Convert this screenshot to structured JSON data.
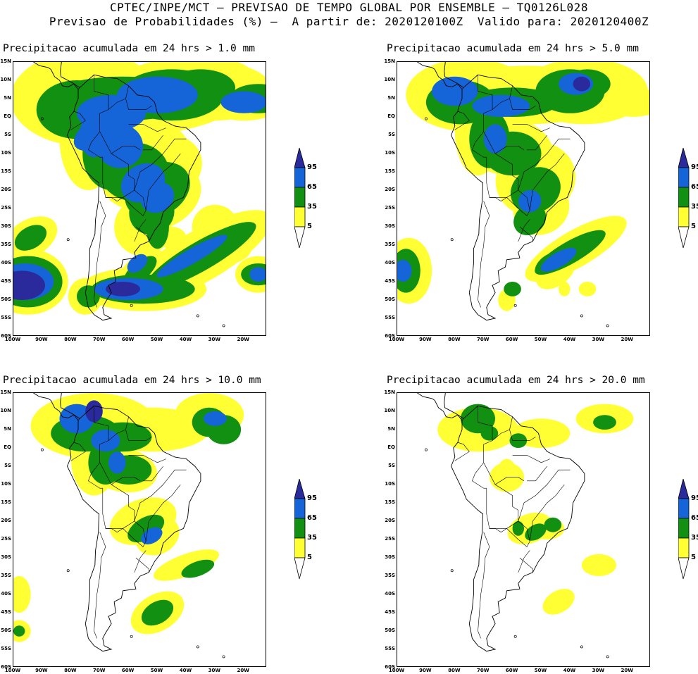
{
  "header": {
    "line1": "CPTEC/INPE/MCT — PREVISAO DE TEMPO GLOBAL POR ENSEMBLE — TQ0126L028",
    "line2": "Previsao de Probabilidades (%) —  A partir de: 2020120100Z  Valido para: 2020120400Z"
  },
  "panels": [
    {
      "title": "Precipitacao acumulada em 24 hrs > 1.0 mm",
      "level": "high"
    },
    {
      "title": "Precipitacao acumulada em 24 hrs > 5.0 mm",
      "level": "midhigh"
    },
    {
      "title": "Precipitacao acumulada em 24 hrs > 10.0 mm",
      "level": "mid"
    },
    {
      "title": "Precipitacao acumulada em 24 hrs > 20.0 mm",
      "level": "low"
    }
  ],
  "lat_labels": [
    "15N",
    "10N",
    "5N",
    "EQ",
    "5S",
    "10S",
    "15S",
    "20S",
    "25S",
    "30S",
    "35S",
    "40S",
    "45S",
    "50S",
    "55S",
    "60S"
  ],
  "lon_labels": [
    "100W",
    "90W",
    "80W",
    "70W",
    "60W",
    "50W",
    "40W",
    "30W",
    "20W"
  ],
  "legend": {
    "labels": [
      "95",
      "65",
      "35",
      "5"
    ],
    "colors": [
      "#2a2a9c",
      "#1565d8",
      "#119011",
      "#ffff33",
      "#ffffff"
    ]
  }
}
